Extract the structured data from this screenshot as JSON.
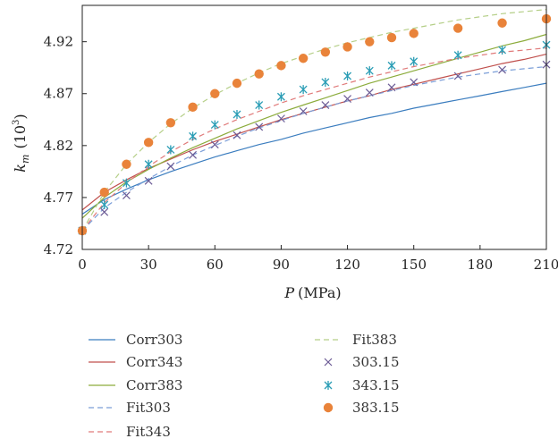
{
  "chart_data": {
    "type": "line",
    "xlabel_italic": "P",
    "xlabel_unit": "(MPa)",
    "ylabel_main": "k",
    "ylabel_sub": "m",
    "ylabel_unit_open": "(10",
    "ylabel_unit_exp": "3",
    "ylabel_unit_close": ")",
    "xlim": [
      0,
      210
    ],
    "ylim": [
      4.72,
      4.955
    ],
    "xticks": [
      0,
      30,
      60,
      90,
      120,
      150,
      180,
      210
    ],
    "yticks": [
      4.72,
      4.77,
      4.82,
      4.87,
      4.92
    ],
    "ytick_labels": [
      "4.72",
      "4.77",
      "4.82",
      "4.87",
      "4.92"
    ],
    "series": [
      {
        "name": "Corr303",
        "kind": "line-solid",
        "color": "#3b7dbf",
        "x": [
          0,
          10,
          20,
          30,
          40,
          50,
          60,
          70,
          80,
          90,
          100,
          110,
          120,
          130,
          140,
          150,
          160,
          170,
          180,
          190,
          200,
          210
        ],
        "y": [
          4.754,
          4.768,
          4.778,
          4.787,
          4.795,
          4.802,
          4.809,
          4.815,
          4.821,
          4.826,
          4.832,
          4.837,
          4.842,
          4.847,
          4.851,
          4.856,
          4.86,
          4.864,
          4.868,
          4.872,
          4.876,
          4.88
        ]
      },
      {
        "name": "Corr343",
        "kind": "line-solid",
        "color": "#c0504d",
        "x": [
          0,
          10,
          20,
          30,
          40,
          50,
          60,
          70,
          80,
          90,
          100,
          110,
          120,
          130,
          140,
          150,
          160,
          170,
          180,
          190,
          200,
          210
        ],
        "y": [
          4.758,
          4.775,
          4.787,
          4.798,
          4.807,
          4.816,
          4.824,
          4.831,
          4.838,
          4.845,
          4.851,
          4.857,
          4.863,
          4.868,
          4.874,
          4.879,
          4.884,
          4.889,
          4.894,
          4.899,
          4.903,
          4.908
        ]
      },
      {
        "name": "Corr383",
        "kind": "line-solid",
        "color": "#8cac3c",
        "x": [
          0,
          10,
          20,
          30,
          40,
          50,
          60,
          70,
          80,
          90,
          100,
          110,
          120,
          130,
          140,
          150,
          160,
          170,
          180,
          190,
          200,
          210
        ],
        "y": [
          4.75,
          4.77,
          4.785,
          4.797,
          4.808,
          4.818,
          4.827,
          4.836,
          4.844,
          4.852,
          4.859,
          4.866,
          4.873,
          4.88,
          4.886,
          4.892,
          4.898,
          4.904,
          4.91,
          4.916,
          4.921,
          4.927
        ]
      },
      {
        "name": "Fit303",
        "kind": "line-dashed",
        "color": "#7b9ed8",
        "x": [
          0,
          10,
          20,
          30,
          40,
          50,
          60,
          70,
          80,
          90,
          100,
          110,
          120,
          130,
          140,
          150,
          160,
          170,
          180,
          190,
          200,
          210
        ],
        "y": [
          4.738,
          4.76,
          4.775,
          4.788,
          4.8,
          4.811,
          4.82,
          4.829,
          4.837,
          4.844,
          4.851,
          4.857,
          4.863,
          4.868,
          4.873,
          4.878,
          4.882,
          4.886,
          4.889,
          4.892,
          4.894,
          4.896
        ]
      },
      {
        "name": "Fit343",
        "kind": "line-dashed",
        "color": "#e07a7a",
        "x": [
          0,
          10,
          20,
          30,
          40,
          50,
          60,
          70,
          80,
          90,
          100,
          110,
          120,
          130,
          140,
          150,
          160,
          170,
          180,
          190,
          200,
          210
        ],
        "y": [
          4.738,
          4.765,
          4.784,
          4.8,
          4.814,
          4.826,
          4.836,
          4.845,
          4.853,
          4.861,
          4.868,
          4.874,
          4.88,
          4.886,
          4.891,
          4.896,
          4.9,
          4.904,
          4.907,
          4.91,
          4.912,
          4.914
        ]
      },
      {
        "name": "Fit383",
        "kind": "line-dashed",
        "color": "#b5cf88",
        "x": [
          0,
          10,
          20,
          30,
          40,
          50,
          60,
          70,
          80,
          90,
          100,
          110,
          120,
          130,
          140,
          150,
          160,
          170,
          180,
          190,
          200,
          210
        ],
        "y": [
          4.738,
          4.775,
          4.802,
          4.823,
          4.841,
          4.856,
          4.869,
          4.88,
          4.89,
          4.899,
          4.906,
          4.913,
          4.919,
          4.924,
          4.929,
          4.933,
          4.937,
          4.941,
          4.944,
          4.947,
          4.949,
          4.951
        ]
      },
      {
        "name": "303.15",
        "kind": "marker-x",
        "color": "#6b5b95",
        "x": [
          0,
          10,
          20,
          30,
          40,
          50,
          60,
          70,
          80,
          90,
          100,
          110,
          120,
          130,
          140,
          150,
          170,
          190,
          210
        ],
        "y": [
          4.738,
          4.756,
          4.772,
          4.786,
          4.8,
          4.811,
          4.821,
          4.83,
          4.838,
          4.846,
          4.853,
          4.859,
          4.865,
          4.871,
          4.876,
          4.881,
          4.887,
          4.893,
          4.898
        ]
      },
      {
        "name": "343.15",
        "kind": "marker-star",
        "color": "#2a9db5",
        "x": [
          0,
          10,
          20,
          30,
          40,
          50,
          60,
          70,
          80,
          90,
          100,
          110,
          120,
          130,
          140,
          150,
          170,
          190,
          210
        ],
        "y": [
          4.738,
          4.763,
          4.784,
          4.802,
          4.816,
          4.829,
          4.84,
          4.85,
          4.859,
          4.867,
          4.874,
          4.881,
          4.887,
          4.892,
          4.897,
          4.901,
          4.907,
          4.912,
          4.917
        ]
      },
      {
        "name": "383.15",
        "kind": "marker-dot",
        "color": "#e9833a",
        "x": [
          0,
          10,
          20,
          30,
          40,
          50,
          60,
          70,
          80,
          90,
          100,
          110,
          120,
          130,
          140,
          150,
          170,
          190,
          210
        ],
        "y": [
          4.738,
          4.775,
          4.802,
          4.823,
          4.842,
          4.857,
          4.87,
          4.88,
          4.889,
          4.897,
          4.904,
          4.91,
          4.915,
          4.92,
          4.924,
          4.928,
          4.933,
          4.938,
          4.942
        ]
      }
    ],
    "legend_position": "below"
  }
}
